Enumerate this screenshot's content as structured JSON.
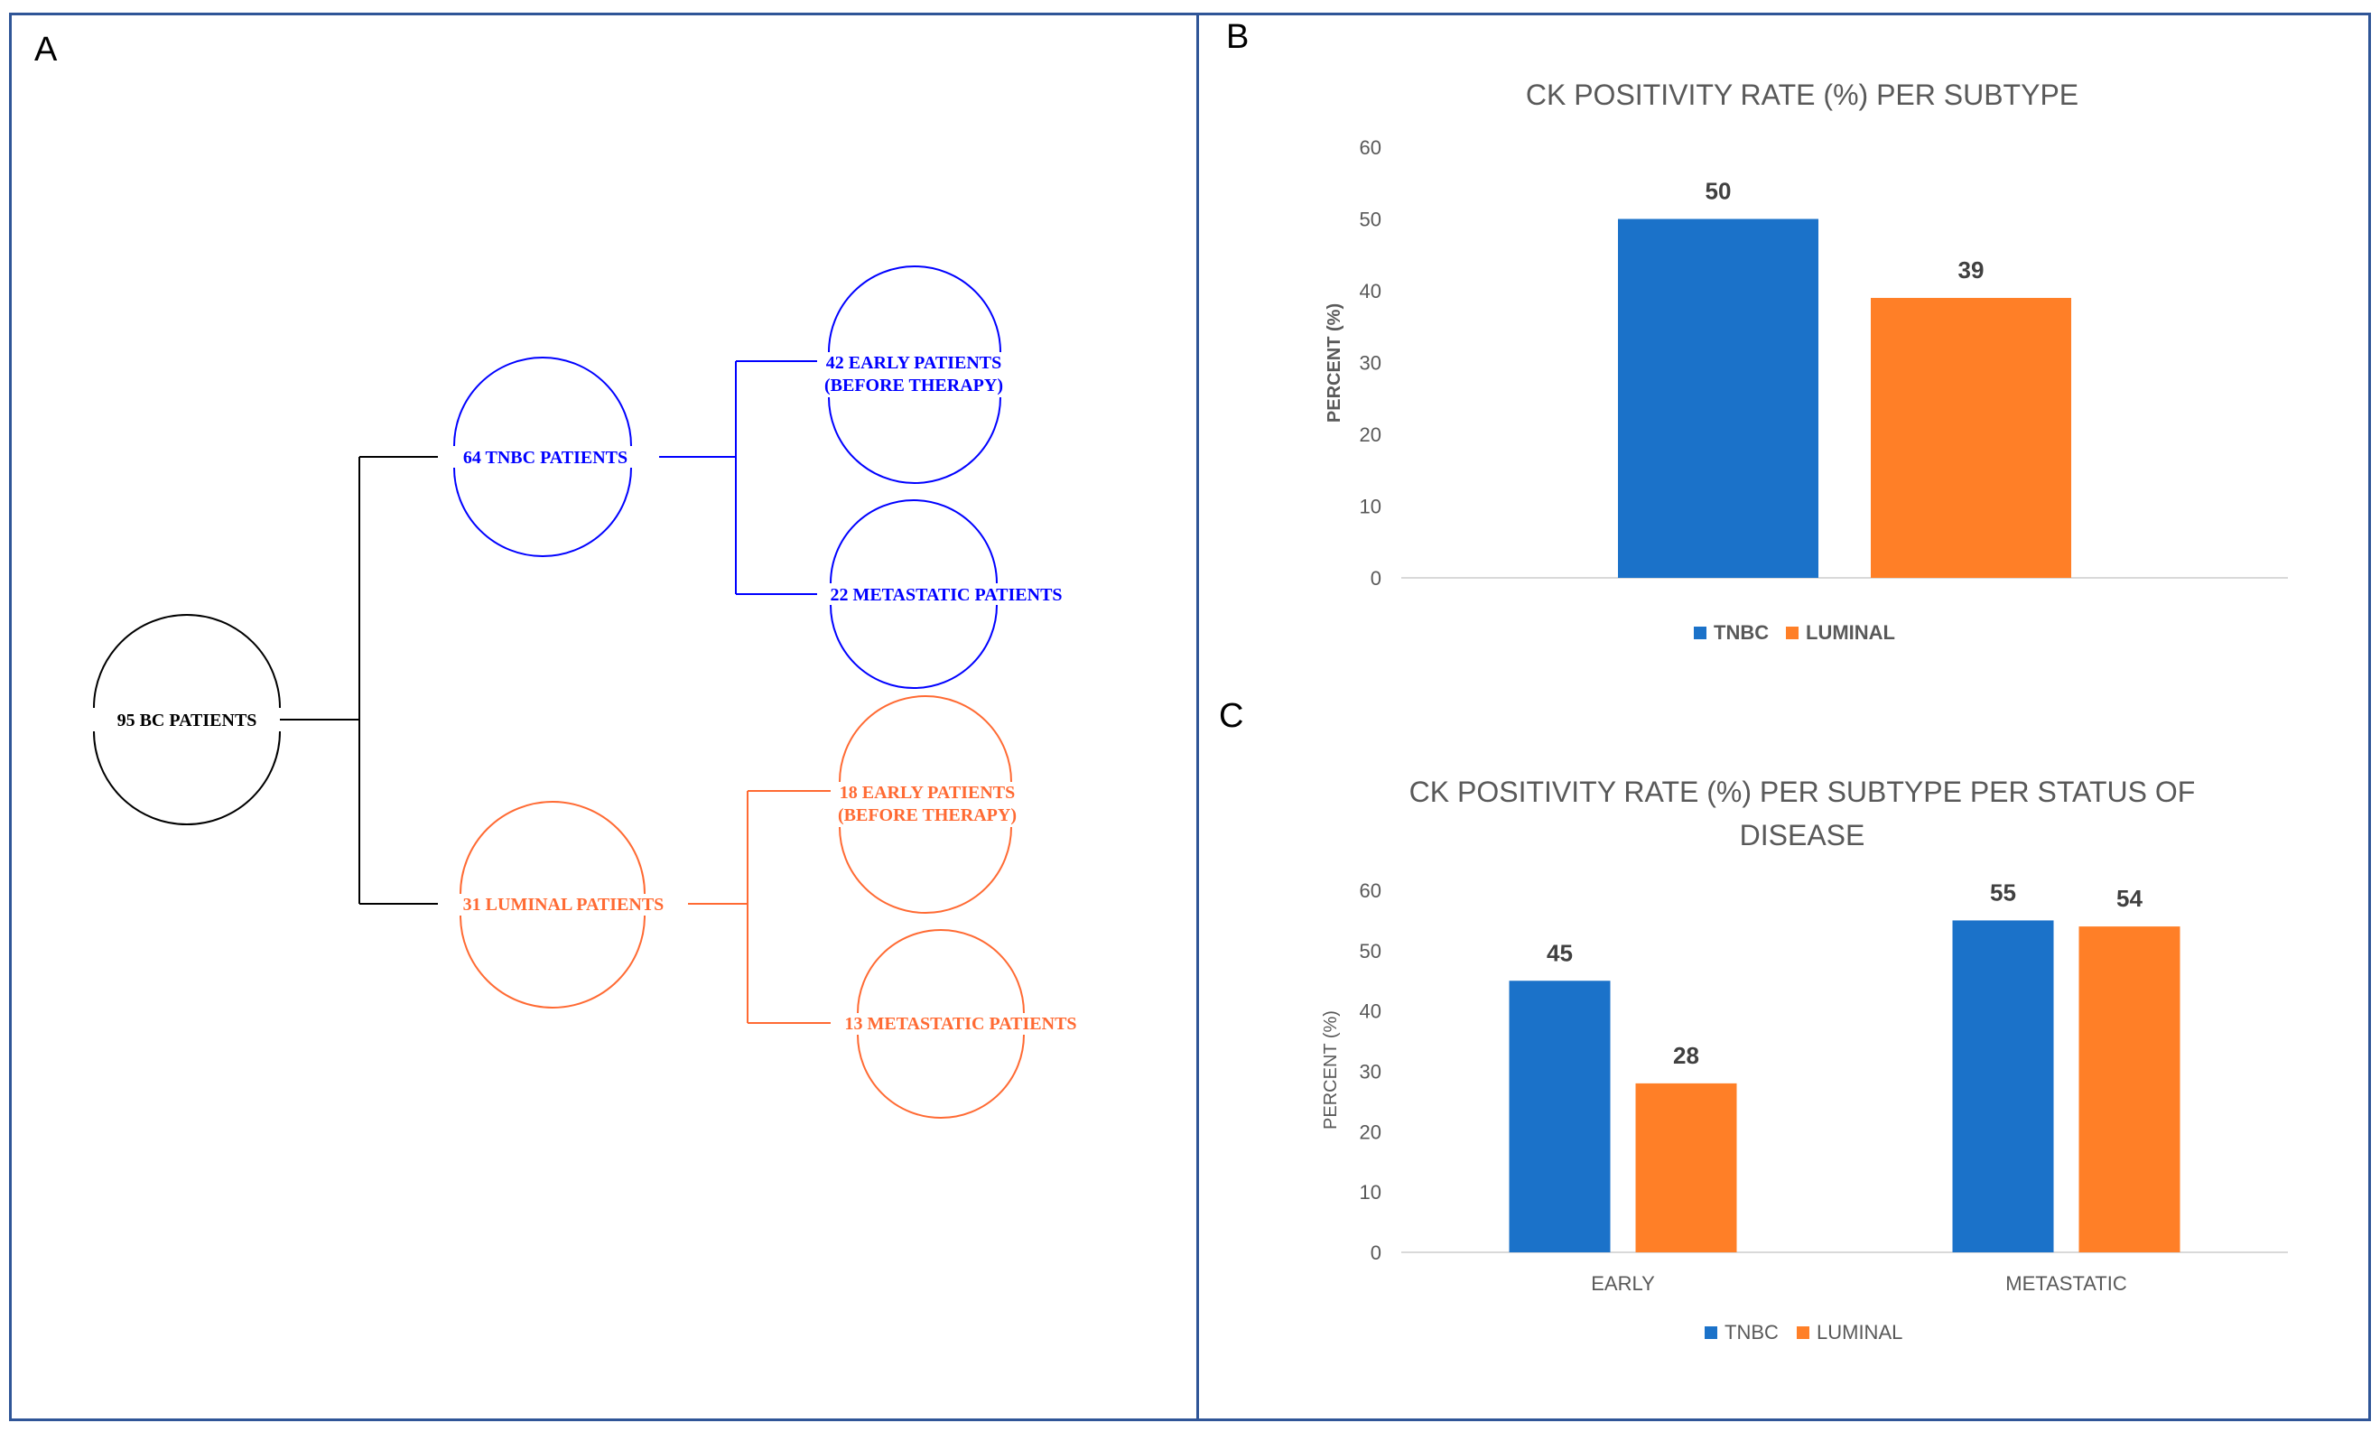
{
  "panels": {
    "a_letter": "A",
    "b_letter": "B",
    "c_letter": "C"
  },
  "flowchart": {
    "root": "95 BC PATIENTS",
    "tnbc": "64 TNBC PATIENTS",
    "tnbc_early_line1": "42 EARLY PATIENTS",
    "tnbc_early_line2": "(BEFORE THERAPY)",
    "tnbc_meta": "22 METASTATIC PATIENTS",
    "luminal": "31 LUMINAL PATIENTS",
    "lum_early_line1": "18 EARLY PATIENTS",
    "lum_early_line2": "(BEFORE THERAPY)",
    "lum_meta": "13 METASTATIC PATIENTS",
    "colors": {
      "root": "#000000",
      "tnbc": "#0000ff",
      "luminal": "#ff6a33"
    }
  },
  "chart_data": [
    {
      "type": "bar",
      "title": "CK POSITIVITY  RATE (%) PER SUBTYPE",
      "ylabel": "PERCENT (%)",
      "ylim": [
        0,
        60
      ],
      "yticks": [
        "0",
        "10",
        "20",
        "30",
        "40",
        "50",
        "60"
      ],
      "series": [
        {
          "name": "TNBC",
          "values": [
            50
          ],
          "labels": [
            "50"
          ],
          "color": "#1b72c9"
        },
        {
          "name": "LUMINAL",
          "values": [
            39
          ],
          "labels": [
            "39"
          ],
          "color": "#ff7f27"
        }
      ],
      "legend": "bottom",
      "grid": false
    },
    {
      "type": "bar",
      "title_line1": "CK POSITIVITY  RATE (%) PER SUBTYPE PER STATUS OF",
      "title_line2": "DISEASE",
      "ylabel": "PERCENT (%)",
      "ylim": [
        0,
        60
      ],
      "yticks": [
        "0",
        "10",
        "20",
        "30",
        "40",
        "50",
        "60"
      ],
      "categories": [
        "EARLY",
        "METASTATIC"
      ],
      "series": [
        {
          "name": "TNBC",
          "values": [
            45,
            55
          ],
          "labels": [
            "45",
            "55"
          ],
          "color": "#1b72c9"
        },
        {
          "name": "LUMINAL",
          "values": [
            28,
            54
          ],
          "labels": [
            "28",
            "54"
          ],
          "color": "#ff7f27"
        }
      ],
      "legend": "bottom",
      "grid": false
    }
  ]
}
